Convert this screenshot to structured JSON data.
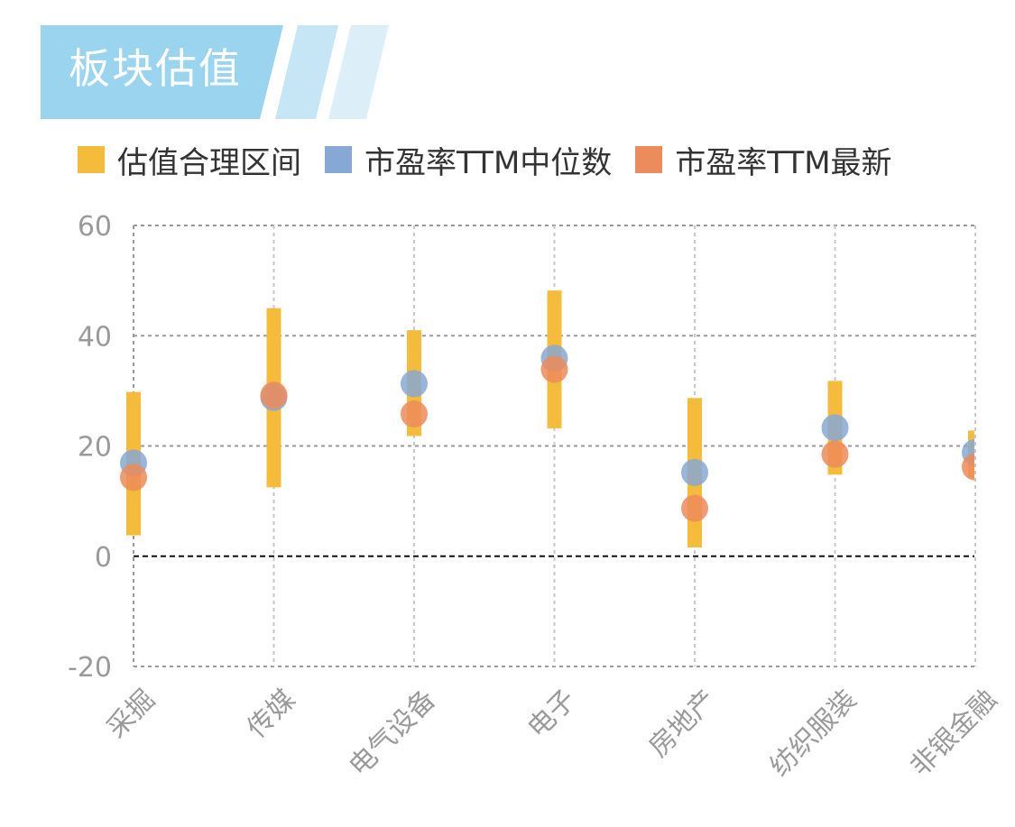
{
  "header": {
    "title": "板块估值"
  },
  "legend": {
    "items": [
      {
        "label": "估值合理区间",
        "color": "#F5BC3C"
      },
      {
        "label": "市盈率TTM中位数",
        "color": "#86A8D4"
      },
      {
        "label": "市盈率TTM最新",
        "color": "#EC8B5B"
      }
    ]
  },
  "colors": {
    "banner": "#9AD4EE",
    "banner_light": "#C6E6F5",
    "banner_lighter": "#DCEFF8",
    "range": "#F5BC3C",
    "median": "#86A8D4",
    "latest": "#EC8B5B"
  },
  "chart_data": {
    "type": "scatter",
    "categories": [
      "采掘",
      "传媒",
      "电气设备",
      "电子",
      "房地产",
      "纺织服装",
      "非银金融"
    ],
    "ylim": [
      -20,
      60
    ],
    "yticks": [
      "60",
      "40",
      "20",
      "0",
      "-20"
    ],
    "grid": true,
    "legend_position": "top",
    "series": [
      {
        "name": "估值合理区间",
        "kind": "range",
        "low": [
          3.8,
          12.5,
          21.8,
          23.2,
          1.6,
          14.8,
          14.2
        ],
        "high": [
          29.8,
          45.0,
          41.0,
          48.2,
          28.7,
          31.8,
          22.8
        ]
      },
      {
        "name": "市盈率TTM中位数",
        "kind": "point",
        "values": [
          16.9,
          28.8,
          31.3,
          35.9,
          15.2,
          23.3,
          18.8
        ]
      },
      {
        "name": "市盈率TTM最新",
        "kind": "point",
        "values": [
          14.3,
          29.2,
          25.8,
          33.9,
          8.7,
          18.5,
          16.2
        ]
      }
    ]
  }
}
